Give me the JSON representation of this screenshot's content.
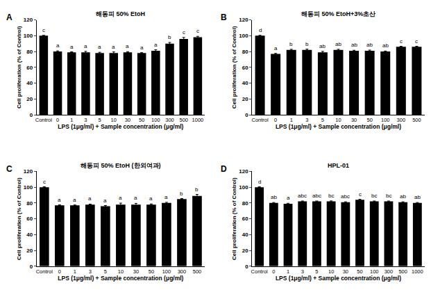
{
  "chart_data": [
    {
      "type": "bar",
      "panel": "A",
      "title": "해동피 50% EtoH",
      "xlabel": "LPS (1μg/ml) + Sample concentration (μg/ml)",
      "ylabel": "Cell proliferation (% of Control)",
      "categories": [
        "Control",
        "0",
        "1",
        "3",
        "5",
        "10",
        "30",
        "50",
        "100",
        "300",
        "500",
        "1000"
      ],
      "values": [
        100,
        80,
        79,
        79,
        78,
        78,
        79,
        78,
        81,
        90,
        96,
        98
      ],
      "errors": [
        0.5,
        0.8,
        0.6,
        1.2,
        1.0,
        1.5,
        0.8,
        0.6,
        1.2,
        1.5,
        1.8,
        1.2
      ],
      "annotations": [
        "c",
        "a",
        "a",
        "a",
        "a",
        "a",
        "a",
        "a",
        "a",
        "b",
        "c",
        "c"
      ],
      "color": "#000000",
      "ylim": [
        0,
        120
      ],
      "yticks": [
        0,
        20,
        40,
        60,
        80,
        100,
        120
      ],
      "grid": false
    },
    {
      "type": "bar",
      "panel": "B",
      "title": "해동피 50% EtoH+3%초산",
      "xlabel": "LPS (1μg/ml) + Sample concentration (μg/ml)",
      "ylabel": "Cell proliferation (% of Control)",
      "categories": [
        "Control",
        "0",
        "1",
        "3",
        "5",
        "10",
        "30",
        "50",
        "100",
        "300",
        "500"
      ],
      "values": [
        100,
        77,
        82,
        82,
        79,
        82,
        81,
        81,
        80,
        86,
        86
      ],
      "errors": [
        0.5,
        0.6,
        0.8,
        1.0,
        1.2,
        0.8,
        0.6,
        0.8,
        0.6,
        0.6,
        0.6
      ],
      "annotations": [
        "d",
        "a",
        "b",
        "b",
        "ab",
        "ab",
        "ab",
        "ab",
        "ab",
        "c",
        "c"
      ],
      "color": "#000000",
      "ylim": [
        0,
        120
      ],
      "yticks": [
        0,
        20,
        40,
        60,
        80,
        100,
        120
      ],
      "grid": false
    },
    {
      "type": "bar",
      "panel": "C",
      "title": "해동피 50% EtoH (한외여과)",
      "xlabel": "LPS (1μg/ml) + Sample concentration (μg/ml)",
      "ylabel": "Cell proliferation (% of Control)",
      "categories": [
        "Control",
        "0",
        "1",
        "3",
        "5",
        "10",
        "30",
        "50",
        "100",
        "300",
        "500"
      ],
      "values": [
        100,
        77,
        77,
        78,
        76,
        78,
        78,
        78,
        80,
        85,
        89
      ],
      "errors": [
        0.5,
        0.6,
        0.5,
        0.6,
        0.8,
        1.8,
        1.5,
        0.8,
        0.8,
        0.6,
        1.8
      ],
      "annotations": [
        "c",
        "a",
        "a",
        "a",
        "a",
        "a",
        "a",
        "a",
        "a",
        "b",
        "b"
      ],
      "color": "#000000",
      "ylim": [
        0,
        120
      ],
      "yticks": [
        0,
        20,
        40,
        60,
        80,
        100,
        120
      ],
      "grid": false
    },
    {
      "type": "bar",
      "panel": "D",
      "title": "HPL-01",
      "xlabel": "LPS (1μg/ml) + Sample concentration (μg/ml)",
      "ylabel": "Cell proliferation (% of Control)",
      "categories": [
        "Control",
        "0",
        "1",
        "3",
        "5",
        "10",
        "30",
        "50",
        "100",
        "300",
        "500",
        "1000"
      ],
      "values": [
        100,
        80,
        79,
        82,
        82,
        82,
        81,
        84,
        82,
        82,
        81,
        80
      ],
      "errors": [
        0.5,
        0.6,
        0.6,
        0.5,
        0.5,
        0.6,
        0.5,
        0.6,
        0.5,
        0.5,
        0.5,
        0.6
      ],
      "annotations": [
        "d",
        "ab",
        "a",
        "abc",
        "abc",
        "bc",
        "abc",
        "c",
        "bc",
        "bc",
        "ab",
        "ab"
      ],
      "color": "#000000",
      "ylim": [
        0,
        120
      ],
      "yticks": [
        0,
        20,
        40,
        60,
        80,
        100,
        120
      ],
      "grid": false
    }
  ]
}
